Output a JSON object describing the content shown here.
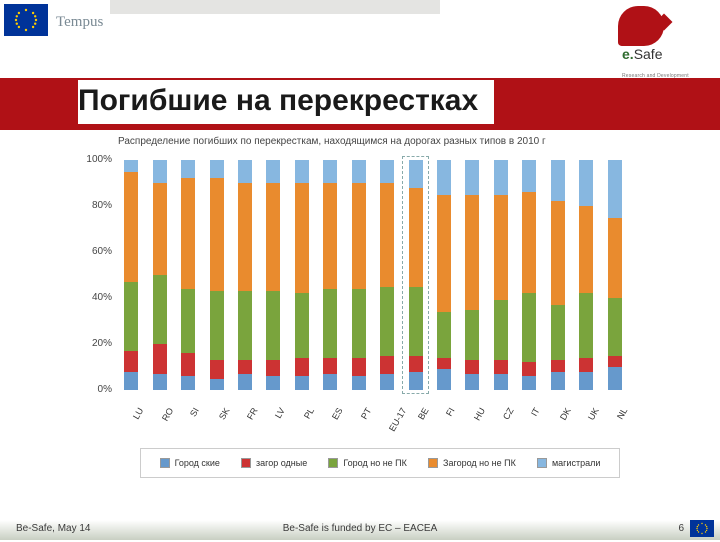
{
  "header": {
    "tempus": "Tempus",
    "esafe_e": "e.",
    "esafe_s": "Safe",
    "esafe_sub": "Research and Development"
  },
  "title": "Погибшие на перекрестках",
  "subtitle": "Распределение погибших по перекресткам, находящимся на дорогах разных типов в 2010 г",
  "colors": {
    "s1": "#6699cc",
    "s2": "#cc3333",
    "s3": "#7aa43d",
    "s4": "#e98b2e",
    "s5": "#87b7e0",
    "grid": "#cfcfcf",
    "bg": "#ffffff"
  },
  "chart": {
    "type": "stacked-bar-100",
    "ylim": [
      0,
      100
    ],
    "ytick_step": 20,
    "yticks": [
      "0%",
      "20%",
      "40%",
      "60%",
      "80%",
      "100%"
    ],
    "highlight_index": 10,
    "categories": [
      "LU",
      "RO",
      "SI",
      "SK",
      "FR",
      "LV",
      "PL",
      "ES",
      "PT",
      "EU-17",
      "BE",
      "FI",
      "HU",
      "CZ",
      "IT",
      "DK",
      "UK",
      "NL"
    ],
    "series_labels": [
      "Город\nские",
      "загор\nодные",
      "Город но\nне ПК",
      "Загород\nно не ПК",
      "магистрали"
    ],
    "data": [
      [
        8,
        9,
        30,
        48,
        5
      ],
      [
        7,
        13,
        30,
        40,
        10
      ],
      [
        6,
        10,
        28,
        48,
        8
      ],
      [
        5,
        8,
        30,
        49,
        8
      ],
      [
        7,
        6,
        30,
        47,
        10
      ],
      [
        6,
        7,
        30,
        47,
        10
      ],
      [
        6,
        8,
        28,
        48,
        10
      ],
      [
        7,
        7,
        30,
        46,
        10
      ],
      [
        6,
        8,
        30,
        46,
        10
      ],
      [
        7,
        8,
        30,
        45,
        10
      ],
      [
        8,
        7,
        30,
        43,
        12
      ],
      [
        9,
        5,
        20,
        51,
        15
      ],
      [
        7,
        6,
        22,
        50,
        15
      ],
      [
        7,
        6,
        26,
        46,
        15
      ],
      [
        6,
        6,
        30,
        44,
        14
      ],
      [
        8,
        5,
        24,
        45,
        18
      ],
      [
        8,
        6,
        28,
        38,
        20
      ],
      [
        10,
        5,
        25,
        35,
        25
      ]
    ]
  },
  "legend": [
    "Город ские",
    "загор одные",
    "Город но не ПК",
    "Загород но не ПК",
    "магистрали"
  ],
  "footer": {
    "date": "Be-Safe, May 14",
    "funded": "Be-Safe is funded by EC – EACEA",
    "page": "6"
  }
}
